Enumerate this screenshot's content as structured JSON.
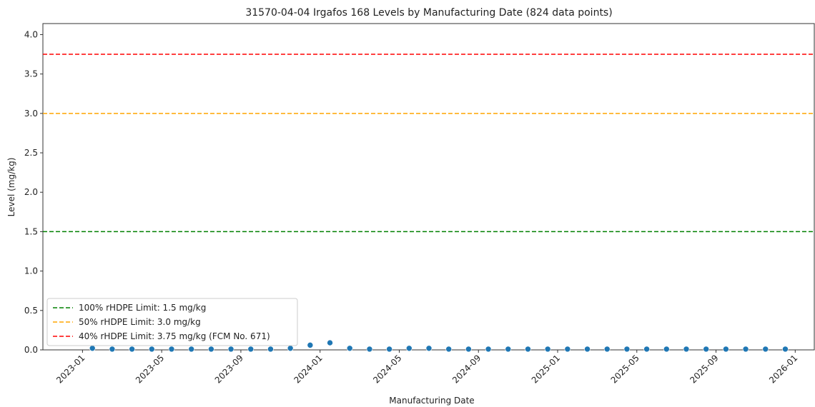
{
  "chart_data": {
    "type": "scatter",
    "title": "31570-04-04 Irgafos 168 Levels by Manufacturing Date (824 data points)",
    "x_label": "Manufacturing Date",
    "y_label": "Level (mg/kg)",
    "color": "#1f77b4",
    "x": [
      "2023-01",
      "2023-02",
      "2023-03",
      "2023-04",
      "2023-05",
      "2023-06",
      "2023-07",
      "2023-08",
      "2023-09",
      "2023-10",
      "2023-11",
      "2023-12",
      "2024-01",
      "2024-02",
      "2024-03",
      "2024-04",
      "2024-05",
      "2024-06",
      "2024-07",
      "2024-08",
      "2024-09",
      "2024-10",
      "2024-11",
      "2024-12",
      "2025-01",
      "2025-02",
      "2025-03",
      "2025-04",
      "2025-05",
      "2025-06",
      "2025-07",
      "2025-08",
      "2025-09",
      "2025-10",
      "2025-11",
      "2025-12"
    ],
    "values": [
      0.02,
      0.01,
      0.01,
      0.01,
      0.01,
      0.01,
      0.01,
      0.01,
      0.01,
      0.01,
      0.02,
      0.06,
      0.09,
      0.02,
      0.01,
      0.01,
      0.02,
      0.02,
      0.01,
      0.01,
      0.01,
      0.01,
      0.01,
      0.01,
      0.01,
      0.01,
      0.01,
      0.01,
      0.01,
      0.01,
      0.01,
      0.01,
      0.01,
      0.01,
      0.01,
      0.01
    ],
    "xlim": [
      "2022-11",
      "2026-02"
    ],
    "xticks": [
      "2023-01",
      "2023-05",
      "2023-09",
      "2024-01",
      "2024-05",
      "2024-09",
      "2025-01",
      "2025-05",
      "2025-09",
      "2026-01"
    ],
    "ylim": [
      0,
      4.14
    ],
    "yticks": [
      {
        "value": 0,
        "label": "0.0"
      },
      0.5,
      {
        "value": 1,
        "label": "1.0"
      },
      1.5,
      {
        "value": 2,
        "label": "2.0"
      },
      2.5,
      {
        "value": 3,
        "label": "3.0"
      },
      3.5,
      {
        "value": 4,
        "label": "4.0"
      }
    ],
    "hlines": [
      {
        "name": "100% rHDPE Limit: 1.5 mg/kg",
        "value": 1.5,
        "color": "#008000"
      },
      {
        "name": "50% rHDPE Limit: 3.0 mg/kg",
        "value": 3.0,
        "color": "#ffa500"
      },
      {
        "name": "40% rHDPE Limit: 3.75 mg/kg (FCM No. 671)",
        "value": 3.75,
        "color": "#ff0000"
      }
    ],
    "legend": "lower left"
  }
}
